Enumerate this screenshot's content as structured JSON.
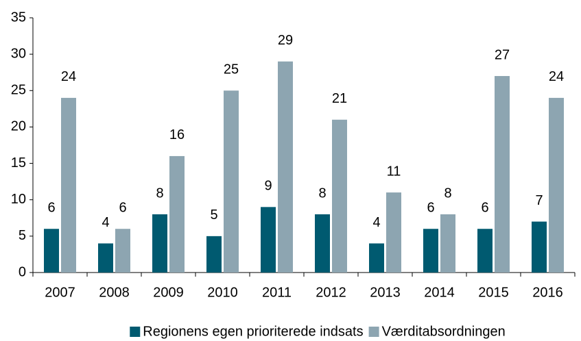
{
  "chart_data": {
    "type": "bar",
    "categories": [
      "2007",
      "2008",
      "2009",
      "2010",
      "2011",
      "2012",
      "2013",
      "2014",
      "2015",
      "2016"
    ],
    "series": [
      {
        "name": "Regionens egen prioriterede indsats",
        "color": "#005a70",
        "values": [
          6,
          4,
          8,
          5,
          9,
          8,
          4,
          6,
          6,
          7
        ]
      },
      {
        "name": "Værditabsordningen",
        "color": "#8da5b1",
        "values": [
          24,
          6,
          16,
          25,
          29,
          21,
          11,
          8,
          27,
          24
        ]
      }
    ],
    "ylim": [
      0,
      35
    ],
    "yticks": [
      0,
      5,
      10,
      15,
      20,
      25,
      30,
      35
    ],
    "grid": false,
    "legend": "bottom"
  }
}
